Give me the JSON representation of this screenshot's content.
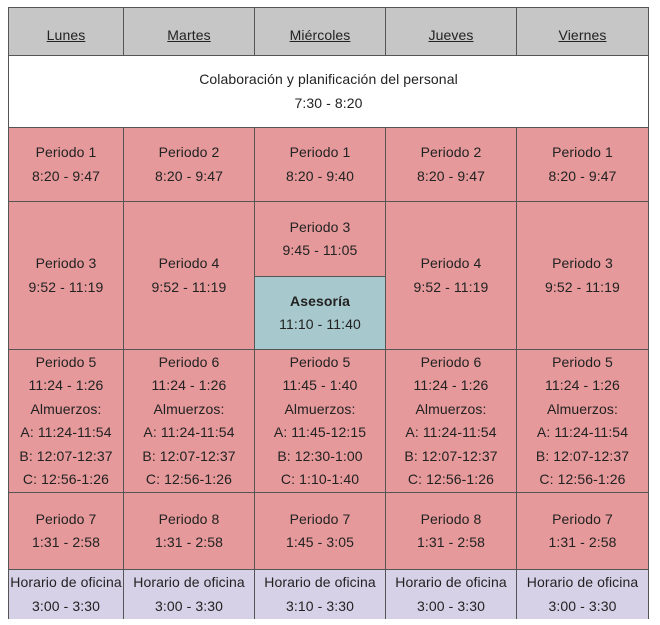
{
  "days": [
    "Lunes",
    "Martes",
    "Miércoles",
    "Jueves",
    "Viernes"
  ],
  "staff_block": {
    "title": "Colaboración y planificación del personal",
    "time": "7:30 - 8:20"
  },
  "block1": [
    {
      "period": "Periodo 1",
      "time": "8:20 - 9:47"
    },
    {
      "period": "Periodo 2",
      "time": "8:20 - 9:47"
    },
    {
      "period": "Periodo 1",
      "time": "8:20 - 9:40"
    },
    {
      "period": "Periodo 2",
      "time": "8:20 - 9:47"
    },
    {
      "period": "Periodo 1",
      "time": "8:20 - 9:47"
    }
  ],
  "block2": [
    {
      "period": "Periodo 3",
      "time": "9:52 - 11:19"
    },
    {
      "period": "Periodo 4",
      "time": "9:52 - 11:19"
    },
    {
      "period": "Periodo 3",
      "time": "9:45 - 11:05"
    },
    {
      "period": "Periodo 4",
      "time": "9:52 - 11:19"
    },
    {
      "period": "Periodo 3",
      "time": "9:52 - 11:19"
    }
  ],
  "advisory": {
    "title": "Asesoría",
    "time": "11:10 - 11:40"
  },
  "block3": [
    {
      "period": "Periodo 5",
      "time": "11:24 - 1:26",
      "lunch_label": "Almuerzos:",
      "a": "A: 11:24-11:54",
      "b": "B: 12:07-12:37",
      "c": "C: 12:56-1:26"
    },
    {
      "period": "Periodo 6",
      "time": "11:24 - 1:26",
      "lunch_label": "Almuerzos:",
      "a": "A: 11:24-11:54",
      "b": "B: 12:07-12:37",
      "c": "C: 12:56-1:26"
    },
    {
      "period": "Periodo 5",
      "time": "11:45 - 1:40",
      "lunch_label": "Almuerzos:",
      "a": "A: 11:45-12:15",
      "b": "B: 12:30-1:00",
      "c": "C: 1:10-1:40"
    },
    {
      "period": "Periodo 6",
      "time": "11:24 - 1:26",
      "lunch_label": "Almuerzos:",
      "a": "A: 11:24-11:54",
      "b": "B: 12:07-12:37",
      "c": "C: 12:56-1:26"
    },
    {
      "period": "Periodo 5",
      "time": "11:24 - 1:26",
      "lunch_label": "Almuerzos:",
      "a": "A: 11:24-11:54",
      "b": "B: 12:07-12:37",
      "c": "C: 12:56-1:26"
    }
  ],
  "block4": [
    {
      "period": "Periodo 7",
      "time": "1:31 - 2:58"
    },
    {
      "period": "Periodo 8",
      "time": "1:31 - 2:58"
    },
    {
      "period": "Periodo 7",
      "time": "1:45 - 3:05"
    },
    {
      "period": "Periodo 8",
      "time": "1:31 - 2:58"
    },
    {
      "period": "Periodo 7",
      "time": "1:31 - 2:58"
    }
  ],
  "office": [
    {
      "label": "Horario de oficina",
      "time": "3:00 - 3:30"
    },
    {
      "label": "Horario de oficina",
      "time": "3:00 - 3:30"
    },
    {
      "label": "Horario de oficina",
      "time": "3:10 - 3:30"
    },
    {
      "label": "Horario de oficina",
      "time": "3:00 - 3:30"
    },
    {
      "label": "Horario de oficina",
      "time": "3:00 - 3:30"
    }
  ],
  "colors": {
    "header": "#c6c6c6",
    "period": "#e6999b",
    "advisory": "#a7c8cc",
    "office": "#d7d1e8",
    "banner": "#ffffff"
  }
}
